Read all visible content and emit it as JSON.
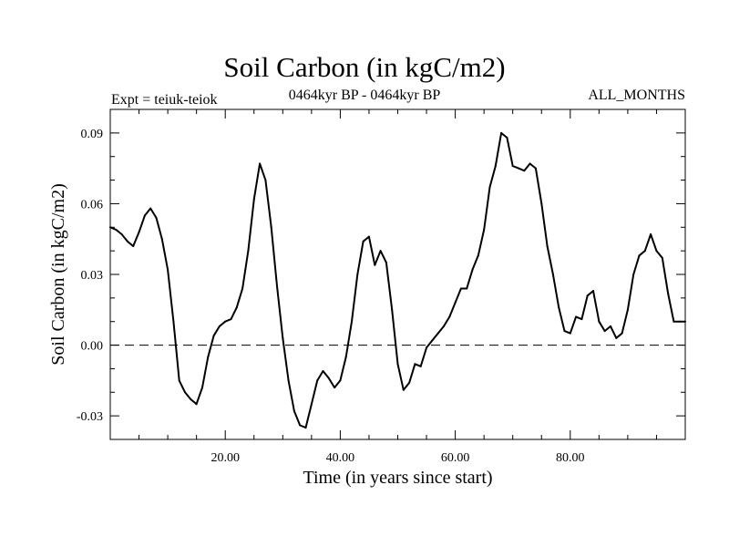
{
  "header": {
    "title": "Soil Carbon (in kgC/m2)",
    "experiment": "Expt = teiuk-teiok",
    "period": "0464kyr BP - 0464kyr BP",
    "months": "ALL_MONTHS"
  },
  "chart_data": {
    "type": "line",
    "title": "Soil Carbon (in kgC/m2)",
    "xlabel": "Time (in years since start)",
    "ylabel": "Soil Carbon (in kgC/m2)",
    "xlim": [
      0,
      100
    ],
    "ylim": [
      -0.04,
      0.1
    ],
    "xticks": [
      20,
      40,
      60,
      80
    ],
    "xtick_labels": [
      "20.00",
      "40.00",
      "60.00",
      "80.00"
    ],
    "yticks": [
      -0.03,
      0.0,
      0.03,
      0.06,
      0.09
    ],
    "ytick_labels": [
      "-0.03",
      "0.00",
      "0.03",
      "0.06",
      "0.09"
    ],
    "reference_line": {
      "y": 0.0,
      "style": "dashed"
    },
    "grid": false,
    "series": [
      {
        "x": [
          0,
          1,
          2,
          3,
          4,
          5,
          6,
          7,
          8,
          9,
          10,
          11,
          12,
          13,
          14,
          15,
          16,
          17,
          18,
          19,
          20,
          21,
          22,
          23,
          24,
          25,
          26,
          27,
          28,
          29,
          30,
          31,
          32,
          33,
          34,
          35,
          36,
          37,
          38,
          39,
          40,
          41,
          42,
          43,
          44,
          45,
          46,
          47,
          48,
          49,
          50,
          51,
          52,
          53,
          54,
          55,
          56,
          57,
          58,
          59,
          60,
          61,
          62,
          63,
          64,
          65,
          66,
          67,
          68,
          69,
          70,
          71,
          72,
          73,
          74,
          75,
          76,
          77,
          78,
          79,
          80,
          81,
          82,
          83,
          84,
          85,
          86,
          87,
          88,
          89,
          90,
          91,
          92,
          93,
          94,
          95,
          96,
          97,
          98,
          99,
          100
        ],
        "y": [
          0.05,
          0.049,
          0.047,
          0.044,
          0.042,
          0.048,
          0.055,
          0.058,
          0.054,
          0.045,
          0.032,
          0.01,
          -0.015,
          -0.02,
          -0.023,
          -0.025,
          -0.018,
          -0.005,
          0.004,
          0.008,
          0.01,
          0.011,
          0.016,
          0.024,
          0.04,
          0.062,
          0.077,
          0.07,
          0.05,
          0.025,
          0.003,
          -0.015,
          -0.028,
          -0.034,
          -0.035,
          -0.025,
          -0.015,
          -0.011,
          -0.014,
          -0.018,
          -0.015,
          -0.005,
          0.01,
          0.03,
          0.044,
          0.046,
          0.034,
          0.04,
          0.035,
          0.015,
          -0.008,
          -0.019,
          -0.016,
          -0.008,
          -0.009,
          -0.001,
          0.002,
          0.005,
          0.008,
          0.012,
          0.018,
          0.024,
          0.024,
          0.032,
          0.038,
          0.049,
          0.067,
          0.076,
          0.09,
          0.088,
          0.076,
          0.075,
          0.074,
          0.077,
          0.075,
          0.06,
          0.042,
          0.03,
          0.016,
          0.006,
          0.005,
          0.012,
          0.011,
          0.021,
          0.023,
          0.01,
          0.006,
          0.008,
          0.003,
          0.005,
          0.015,
          0.03,
          0.038,
          0.04,
          0.047,
          0.04,
          0.037,
          0.022,
          0.01,
          0.01,
          0.01
        ]
      }
    ]
  }
}
